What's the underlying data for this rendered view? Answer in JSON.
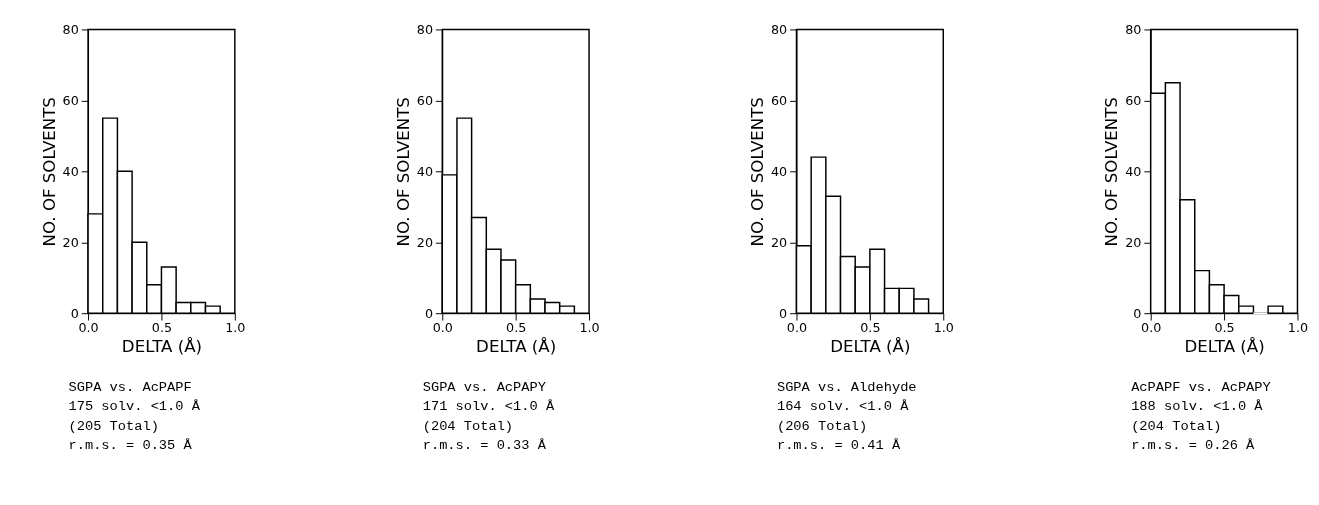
{
  "chart_data": [
    {
      "type": "histogram",
      "xlabel": "DELTA (Å)",
      "ylabel": "NO. OF SOLVENTS",
      "color": "#ffffff",
      "grid": false,
      "bins": [
        0.0,
        0.1,
        0.2,
        0.3,
        0.4,
        0.5,
        0.6,
        0.7,
        0.8,
        0.9
      ],
      "values": [
        28,
        55,
        40,
        20,
        8,
        13,
        3,
        3,
        2
      ],
      "xlim": [
        0,
        1.0
      ],
      "xticks": [
        {
          "value": 0,
          "label": "0.0"
        },
        {
          "value": 0.5,
          "label": "0.5"
        },
        {
          "value": 1.0,
          "label": "1.0"
        }
      ],
      "ylim": [
        0,
        80
      ],
      "yticks": [
        0,
        20,
        40,
        60,
        80
      ],
      "annotations": [
        "SGPA vs. AcPAPF",
        "175 solv. <1.0 Å",
        "(205 Total)",
        "r.m.s. = 0.35 Å"
      ]
    },
    {
      "type": "histogram",
      "xlabel": "DELTA (Å)",
      "ylabel": "NO. OF SOLVENTS",
      "color": "#ffffff",
      "grid": false,
      "bins": [
        0.0,
        0.1,
        0.2,
        0.3,
        0.4,
        0.5,
        0.6,
        0.7,
        0.8,
        0.9
      ],
      "values": [
        39,
        55,
        27,
        18,
        15,
        8,
        4,
        3,
        2
      ],
      "xlim": [
        0,
        1.0
      ],
      "xticks": [
        {
          "value": 0,
          "label": "0.0"
        },
        {
          "value": 0.5,
          "label": "0.5"
        },
        {
          "value": 1.0,
          "label": "1.0"
        }
      ],
      "ylim": [
        0,
        80
      ],
      "yticks": [
        0,
        20,
        40,
        60,
        80
      ],
      "annotations": [
        "SGPA vs. AcPAPY",
        "171 solv. <1.0 Å",
        "(204 Total)",
        "r.m.s. = 0.33 Å"
      ]
    },
    {
      "type": "histogram",
      "xlabel": "DELTA (Å)",
      "ylabel": "NO. OF SOLVENTS",
      "color": "#ffffff",
      "grid": false,
      "bins": [
        0.0,
        0.1,
        0.2,
        0.3,
        0.4,
        0.5,
        0.6,
        0.7,
        0.8,
        0.9
      ],
      "values": [
        19,
        44,
        33,
        16,
        13,
        18,
        7,
        7,
        4
      ],
      "xlim": [
        0,
        1.0
      ],
      "xticks": [
        {
          "value": 0,
          "label": "0.0"
        },
        {
          "value": 0.5,
          "label": "0.5"
        },
        {
          "value": 1.0,
          "label": "1.0"
        }
      ],
      "ylim": [
        0,
        80
      ],
      "yticks": [
        0,
        20,
        40,
        60,
        80
      ],
      "annotations": [
        "SGPA vs. Aldehyde",
        "164 solv. <1.0 Å",
        "(206 Total)",
        "r.m.s. = 0.41 Å"
      ]
    },
    {
      "type": "histogram",
      "xlabel": "DELTA (Å)",
      "ylabel": "NO. OF SOLVENTS",
      "color": "#ffffff",
      "grid": false,
      "bins": [
        0.0,
        0.1,
        0.2,
        0.3,
        0.4,
        0.5,
        0.6,
        0.7,
        0.8,
        0.9
      ],
      "values": [
        62,
        65,
        32,
        12,
        8,
        5,
        2,
        0,
        2
      ],
      "xlim": [
        0,
        1.0
      ],
      "xticks": [
        {
          "value": 0,
          "label": "0.0"
        },
        {
          "value": 0.5,
          "label": "0.5"
        },
        {
          "value": 1.0,
          "label": "1.0"
        }
      ],
      "ylim": [
        0,
        80
      ],
      "yticks": [
        0,
        20,
        40,
        60,
        80
      ],
      "annotations": [
        "AcPAPF vs. AcPAPY",
        "188 solv. <1.0 Å",
        "(204 Total)",
        "r.m.s. = 0.26 Å"
      ]
    }
  ]
}
